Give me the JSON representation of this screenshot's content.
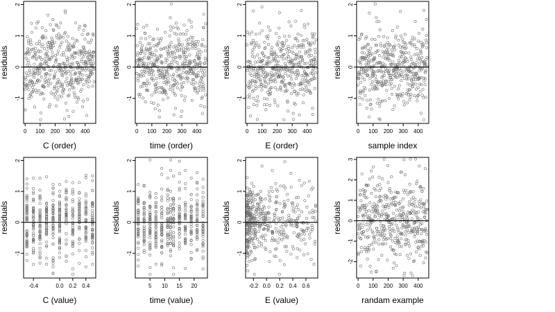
{
  "chart_data": [
    {
      "type": "scatter",
      "xlabel": "C (order)",
      "ylabel": "residuals",
      "xlim": [
        -10,
        470
      ],
      "ylim": [
        -1.8,
        2.1
      ],
      "xticks": [
        0,
        100,
        200,
        300,
        400
      ],
      "yticks": [
        -1,
        0,
        1,
        2
      ],
      "hline": 0,
      "n": 460,
      "seed": 11,
      "x_kind": "order"
    },
    {
      "type": "scatter",
      "xlabel": "time (order)",
      "ylabel": "residuals",
      "xlim": [
        -10,
        470
      ],
      "ylim": [
        -1.8,
        2.1
      ],
      "xticks": [
        0,
        100,
        200,
        300,
        400
      ],
      "yticks": [
        -1,
        0,
        1,
        2
      ],
      "hline": 0,
      "n": 460,
      "seed": 23,
      "x_kind": "order"
    },
    {
      "type": "scatter",
      "xlabel": "E (order)",
      "ylabel": "residuals",
      "xlim": [
        -10,
        470
      ],
      "ylim": [
        -1.8,
        2.1
      ],
      "xticks": [
        0,
        100,
        200,
        300,
        400
      ],
      "yticks": [
        -1,
        0,
        1,
        2
      ],
      "hline": 0,
      "n": 460,
      "seed": 37,
      "x_kind": "order"
    },
    {
      "type": "scatter",
      "xlabel": "sample index",
      "ylabel": "residuals",
      "xlim": [
        -10,
        470
      ],
      "ylim": [
        -1.8,
        2.1
      ],
      "xticks": [
        0,
        100,
        200,
        300,
        400
      ],
      "yticks": [
        -1,
        0,
        1,
        2
      ],
      "hline": 0,
      "n": 460,
      "seed": 41,
      "x_kind": "order"
    },
    {
      "type": "scatter",
      "xlabel": "C (value)",
      "ylabel": "residuals",
      "xlim": [
        -0.55,
        0.55
      ],
      "ylim": [
        -1.8,
        2.1
      ],
      "xticks": [
        -0.4,
        0.0,
        0.2,
        0.4
      ],
      "xtick_labels": [
        "-0.4",
        "0.0",
        "0.2",
        "0.4"
      ],
      "yticks": [
        -1,
        0,
        1,
        2
      ],
      "hline": 0,
      "n": 460,
      "seed": 53,
      "x_kind": "discrete",
      "x_levels": [
        -0.5,
        -0.4,
        -0.3,
        -0.2,
        -0.1,
        0.0,
        0.1,
        0.2,
        0.3,
        0.4,
        0.5
      ]
    },
    {
      "type": "scatter",
      "xlabel": "time (value)",
      "ylabel": "residuals",
      "xlim": [
        0,
        24.5
      ],
      "ylim": [
        -1.8,
        2.1
      ],
      "xticks": [
        5,
        10,
        15,
        20
      ],
      "yticks": [
        -1,
        0,
        1,
        2
      ],
      "hline": 0,
      "n": 460,
      "seed": 67,
      "x_kind": "discrete",
      "x_levels": [
        1,
        3,
        5,
        7,
        9,
        11,
        12,
        13,
        15,
        17,
        19,
        21,
        23
      ]
    },
    {
      "type": "scatter",
      "xlabel": "E (value)",
      "ylabel": "residuals",
      "xlim": [
        -0.32,
        0.78
      ],
      "ylim": [
        -1.8,
        2.1
      ],
      "xticks": [
        -0.2,
        0.0,
        0.2,
        0.4,
        0.6
      ],
      "xtick_labels": [
        "-0.2",
        "0.0",
        "0.2",
        "0.4",
        "0.6"
      ],
      "yticks": [
        -1,
        0,
        1,
        2
      ],
      "hline": 0,
      "n": 460,
      "seed": 79,
      "x_kind": "skewed"
    },
    {
      "type": "scatter",
      "xlabel": "randam example",
      "ylabel": "residuals",
      "xlim": [
        -10,
        470
      ],
      "ylim": [
        -2.8,
        3.1
      ],
      "xticks": [
        0,
        100,
        200,
        300,
        400
      ],
      "yticks": [
        -2,
        -1,
        0,
        1,
        2,
        3
      ],
      "hline": 0,
      "n": 460,
      "seed": 97,
      "x_kind": "order",
      "spread": 1.1
    }
  ]
}
